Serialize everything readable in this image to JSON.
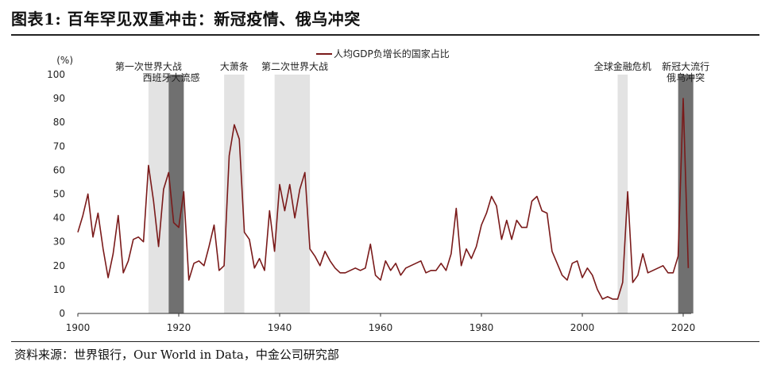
{
  "title": "图表1: 百年罕见双重冲击：新冠疫情、俄乌冲突",
  "source": "资料来源：世界银行，Our World in Data，中金公司研究部",
  "chart_data": {
    "type": "line",
    "ylabel": "(%)",
    "ylim": [
      0,
      100
    ],
    "xlim": [
      1900,
      2022
    ],
    "yticks": [
      0,
      10,
      20,
      30,
      40,
      50,
      60,
      70,
      80,
      90,
      100
    ],
    "xticks": [
      1900,
      1920,
      1940,
      1960,
      1980,
      2000,
      2020
    ],
    "legend_position": "top-center",
    "series": [
      {
        "name": "人均GDP负增长的国家占比",
        "color": "#7a1a1a",
        "x": [
          1900,
          1901,
          1902,
          1903,
          1904,
          1905,
          1906,
          1907,
          1908,
          1909,
          1910,
          1911,
          1912,
          1913,
          1914,
          1915,
          1916,
          1917,
          1918,
          1919,
          1920,
          1921,
          1922,
          1923,
          1924,
          1925,
          1926,
          1927,
          1928,
          1929,
          1930,
          1931,
          1932,
          1933,
          1934,
          1935,
          1936,
          1937,
          1938,
          1939,
          1940,
          1941,
          1942,
          1943,
          1944,
          1945,
          1946,
          1947,
          1948,
          1949,
          1950,
          1951,
          1952,
          1953,
          1954,
          1955,
          1956,
          1957,
          1958,
          1959,
          1960,
          1961,
          1962,
          1963,
          1964,
          1965,
          1966,
          1967,
          1968,
          1969,
          1970,
          1971,
          1972,
          1973,
          1974,
          1975,
          1976,
          1977,
          1978,
          1979,
          1980,
          1981,
          1982,
          1983,
          1984,
          1985,
          1986,
          1987,
          1988,
          1989,
          1990,
          1991,
          1992,
          1993,
          1994,
          1995,
          1996,
          1997,
          1998,
          1999,
          2000,
          2001,
          2002,
          2003,
          2004,
          2005,
          2006,
          2007,
          2008,
          2009,
          2010,
          2011,
          2012,
          2013,
          2014,
          2015,
          2016,
          2017,
          2018,
          2019,
          2020,
          2021
        ],
        "values": [
          34,
          41,
          50,
          32,
          42,
          27,
          15,
          25,
          41,
          17,
          22,
          31,
          32,
          30,
          62,
          47,
          28,
          52,
          59,
          38,
          36,
          51,
          14,
          21,
          22,
          20,
          28,
          37,
          18,
          20,
          66,
          79,
          73,
          34,
          31,
          19,
          23,
          18,
          43,
          26,
          54,
          43,
          54,
          40,
          52,
          59,
          27,
          24,
          20,
          26,
          22,
          19,
          17,
          17,
          18,
          19,
          18,
          19,
          29,
          16,
          14,
          22,
          18,
          21,
          16,
          19,
          20,
          21,
          22,
          17,
          18,
          18,
          21,
          18,
          25,
          44,
          20,
          27,
          23,
          28,
          37,
          42,
          49,
          45,
          31,
          39,
          31,
          39,
          36,
          36,
          47,
          49,
          43,
          42,
          26,
          21,
          16,
          14,
          21,
          22,
          15,
          19,
          16,
          10,
          6,
          7,
          6,
          6,
          13,
          51,
          13,
          16,
          25,
          17,
          18,
          19,
          20,
          17,
          17,
          24,
          90,
          19
        ]
      }
    ],
    "shaded_periods": [
      {
        "start": 1914,
        "end": 1918,
        "shade": "light"
      },
      {
        "start": 1918,
        "end": 1921,
        "shade": "dark"
      },
      {
        "start": 1929,
        "end": 1933,
        "shade": "light"
      },
      {
        "start": 1939,
        "end": 1946,
        "shade": "light"
      },
      {
        "start": 2007,
        "end": 2009,
        "shade": "light"
      },
      {
        "start": 2019,
        "end": 2022,
        "shade": "dark"
      }
    ],
    "annotations": [
      {
        "text": "第一次世界大战",
        "x": 1914,
        "line": 1
      },
      {
        "text": "西班牙大流感",
        "x": 1918.5,
        "line": 2
      },
      {
        "text": "大萧条",
        "x": 1931,
        "line": 1
      },
      {
        "text": "第二次世界大战",
        "x": 1943,
        "line": 1
      },
      {
        "text": "全球金融危机",
        "x": 2008,
        "line": 1
      },
      {
        "text": "新冠大流行",
        "x": 2020.5,
        "line": 1
      },
      {
        "text": "俄乌冲突",
        "x": 2020.5,
        "line": 2
      }
    ],
    "colors": {
      "light_band": "#e3e3e3",
      "dark_band": "#707070",
      "line": "#7a1a1a"
    }
  }
}
